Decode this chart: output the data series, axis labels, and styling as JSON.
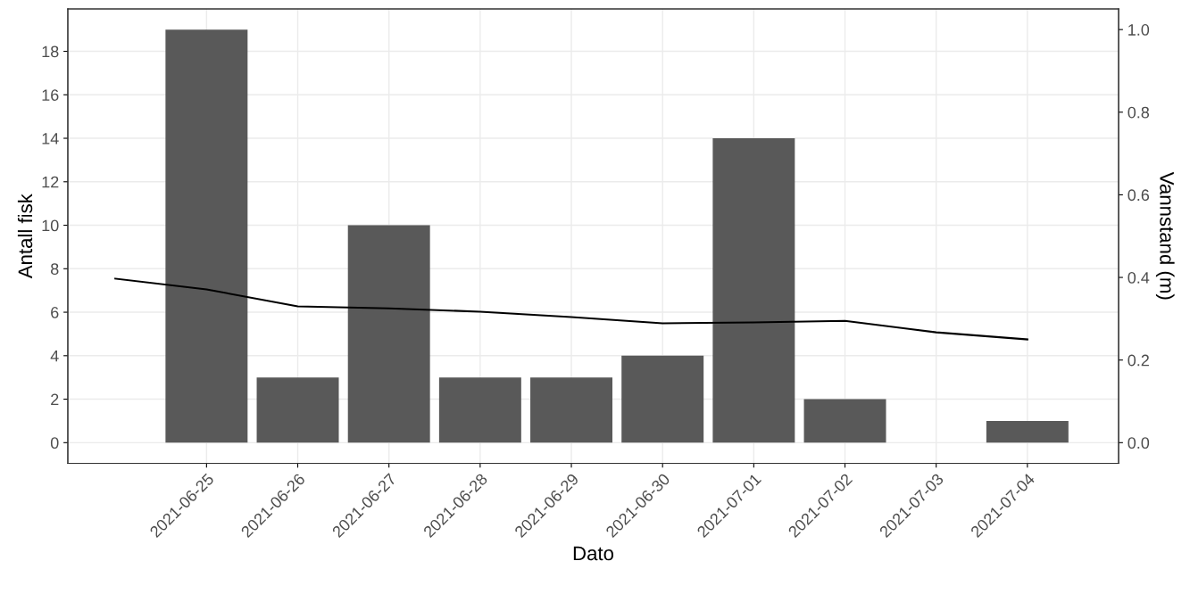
{
  "chart_data": {
    "type": "bar",
    "xlabel": "Dato",
    "ylabel": "Antall fisk",
    "y2label": "Vannstand (m)",
    "x": [
      "2021-06-25",
      "2021-06-26",
      "2021-06-27",
      "2021-06-28",
      "2021-06-29",
      "2021-06-30",
      "2021-07-01",
      "2021-07-02",
      "2021-07-03",
      "2021-07-04"
    ],
    "series": [
      {
        "color": "#595959",
        "values": [
          19,
          3,
          10,
          3,
          3,
          4,
          14,
          2,
          0,
          1
        ]
      },
      {
        "type": "line",
        "axis": "y2",
        "color": "#000000",
        "x": [
          "2021-06-24",
          "2021-06-25",
          "2021-06-26",
          "2021-06-27",
          "2021-06-28",
          "2021-06-29",
          "2021-06-30",
          "2021-07-01",
          "2021-07-02",
          "2021-07-03",
          "2021-07-04"
        ],
        "values": [
          0.397,
          0.371,
          0.33,
          0.325,
          0.317,
          0.304,
          0.289,
          0.291,
          0.295,
          0.267,
          0.25
        ]
      }
    ],
    "xlim": [
      "2021-06-23T11:30",
      "2021-07-05T00:00"
    ],
    "xticks": [
      "2021-06-25",
      "2021-06-26",
      "2021-06-27",
      "2021-06-28",
      "2021-06-29",
      "2021-06-30",
      "2021-07-01",
      "2021-07-02",
      "2021-07-03",
      "2021-07-04"
    ],
    "ylim": [
      -0.95,
      19.95
    ],
    "yticks": [
      0,
      2,
      4,
      6,
      8,
      10,
      12,
      14,
      16,
      18
    ],
    "y2lim": [
      -0.05,
      1.05
    ],
    "y2ticks": [
      {
        "value": 0,
        "label": "0.0"
      },
      {
        "value": 0.2,
        "label": "0.2"
      },
      {
        "value": 0.4,
        "label": "0.4"
      },
      {
        "value": 0.6,
        "label": "0.6"
      },
      {
        "value": 0.8,
        "label": "0.8"
      },
      {
        "value": 1,
        "label": "1.0"
      }
    ],
    "grid": true,
    "legend": false
  }
}
